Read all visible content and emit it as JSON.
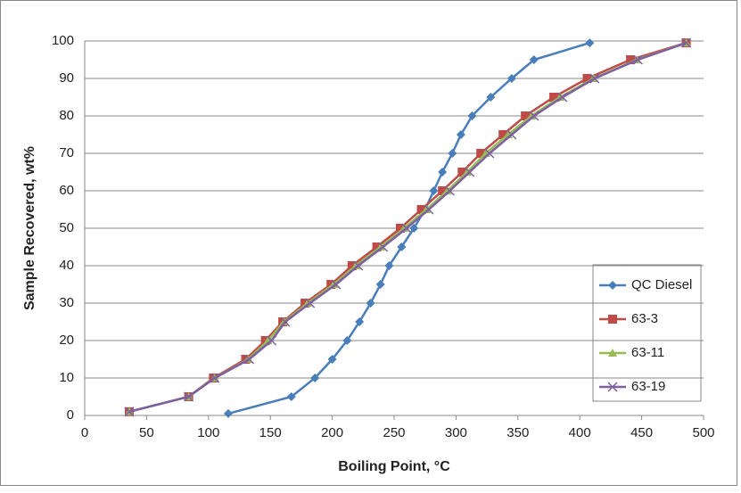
{
  "chart_data": {
    "type": "line",
    "x_label": "Boiling Point, °C",
    "y_label": "Sample Recovered, wt%",
    "xlim": [
      0,
      500
    ],
    "xticks": [
      0,
      50,
      100,
      150,
      200,
      250,
      300,
      350,
      400,
      450,
      500
    ],
    "ylim": [
      0,
      100
    ],
    "yticks": [
      0,
      10,
      20,
      30,
      40,
      50,
      60,
      70,
      80,
      90,
      100
    ],
    "grid": true,
    "legend": "right",
    "series": [
      {
        "name": "QC Diesel",
        "color": "#4a7ebb",
        "marker": "diamond",
        "x": [
          116,
          167,
          186,
          200,
          212,
          222,
          231,
          239,
          246,
          256,
          266,
          275,
          282,
          289,
          297,
          304,
          313,
          328,
          345,
          363,
          408
        ],
        "values": [
          0.5,
          5,
          10,
          15,
          20,
          25,
          30,
          35,
          40,
          45,
          50,
          55,
          60,
          65,
          70,
          75,
          80,
          85,
          90,
          95,
          99.5
        ]
      },
      {
        "name": "63-3",
        "color": "#be4b48",
        "marker": "square",
        "x": [
          36,
          84,
          104,
          130,
          146,
          160,
          178,
          199,
          216,
          236,
          255,
          272,
          289,
          305,
          320,
          338,
          356,
          379,
          406,
          441,
          486
        ],
        "values": [
          1,
          5,
          10,
          15,
          20,
          25,
          30,
          35,
          40,
          45,
          50,
          55,
          60,
          65,
          70,
          75,
          80,
          85,
          90,
          95,
          99.5
        ]
      },
      {
        "name": "63-11",
        "color": "#98b954",
        "marker": "triangle",
        "x": [
          36,
          84,
          105,
          132,
          148,
          161,
          180,
          201,
          219,
          239,
          258,
          276,
          293,
          309,
          324,
          342,
          361,
          384,
          411,
          446,
          486
        ],
        "values": [
          1,
          5,
          10,
          15,
          20,
          25,
          30,
          35,
          40,
          45,
          50,
          55,
          60,
          65,
          70,
          75,
          80,
          85,
          90,
          95,
          99.5
        ]
      },
      {
        "name": "63-19",
        "color": "#7d60a0",
        "marker": "x",
        "x": [
          36,
          84,
          105,
          133,
          151,
          162,
          182,
          203,
          221,
          241,
          260,
          278,
          295,
          311,
          327,
          345,
          363,
          386,
          412,
          447,
          486
        ],
        "values": [
          1,
          5,
          10,
          15,
          20,
          25,
          30,
          35,
          40,
          45,
          50,
          55,
          60,
          65,
          70,
          75,
          80,
          85,
          90,
          95,
          99.5
        ]
      }
    ]
  }
}
